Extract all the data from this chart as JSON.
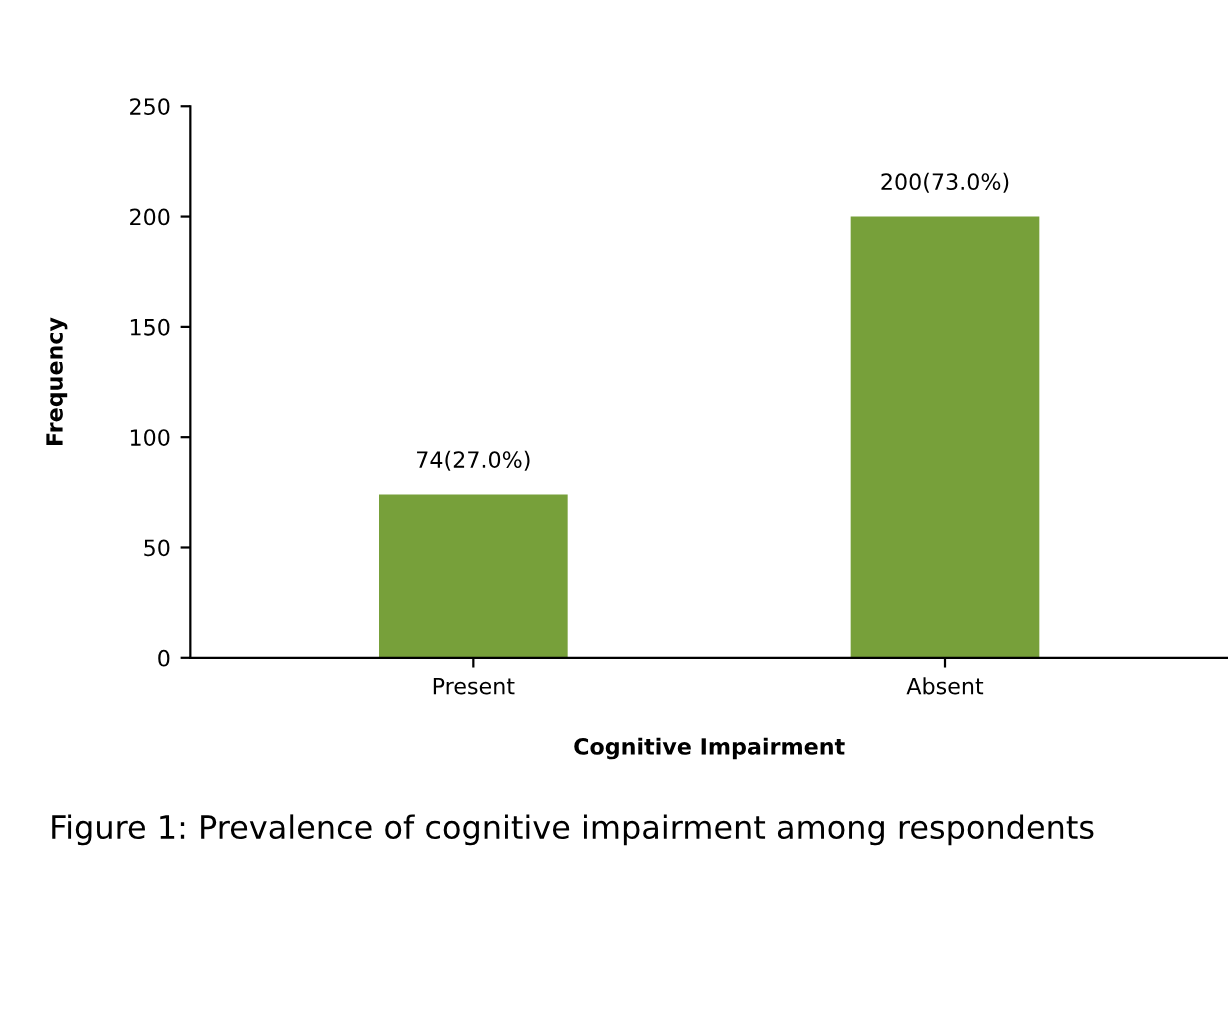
{
  "chart_data": {
    "type": "bar",
    "xlabel": "Cognitive Impairment",
    "ylabel": "Frequency",
    "categories": [
      "Present",
      "Absent"
    ],
    "values": [
      74,
      200
    ],
    "value_labels": [
      "74(27.0%)",
      "200(73.0%)"
    ],
    "color": "#77a03a",
    "ylim": [
      0,
      250
    ],
    "yticks": [
      0,
      50,
      100,
      150,
      200,
      250
    ],
    "grid": false,
    "legend": false,
    "annotations": [
      "Figure 1: Prevalence of cognitive impairment among respondents"
    ]
  }
}
